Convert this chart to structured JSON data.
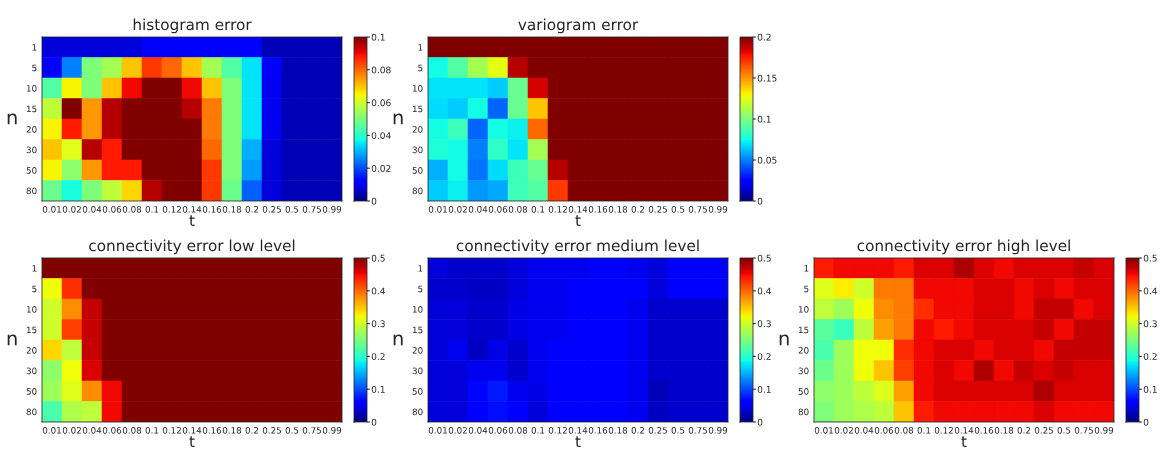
{
  "chart_data": [
    {
      "type": "heatmap",
      "title": "histogram error",
      "xlabel": "t",
      "ylabel": "n",
      "categories": [
        "0.01",
        "0.02",
        "0.04",
        "0.06",
        "0.08",
        "0.1",
        "0.12",
        "0.14",
        "0.16",
        "0.18",
        "0.2",
        "0.25",
        "0.5",
        "0.75",
        "0.99"
      ],
      "y_categories": [
        "1",
        "5",
        "10",
        "15",
        "20",
        "30",
        "50",
        "80"
      ],
      "cells": [
        [
          0.008,
          0.008,
          0.008,
          0.008,
          0.008,
          0.012,
          0.012,
          0.012,
          0.012,
          0.012,
          0.012,
          0.005,
          0.005,
          0.005,
          0.005
        ],
        [
          0.012,
          0.025,
          0.05,
          0.055,
          0.07,
          0.085,
          0.08,
          0.07,
          0.055,
          0.045,
          0.035,
          0.012,
          0.005,
          0.005,
          0.005
        ],
        [
          0.045,
          0.065,
          0.05,
          0.07,
          0.09,
          0.1,
          0.1,
          0.09,
          0.07,
          0.05,
          0.035,
          0.01,
          0.005,
          0.005,
          0.005
        ],
        [
          0.058,
          0.1,
          0.075,
          0.095,
          0.1,
          0.1,
          0.1,
          0.095,
          0.078,
          0.05,
          0.035,
          0.01,
          0.005,
          0.005,
          0.005
        ],
        [
          0.065,
          0.088,
          0.075,
          0.095,
          0.1,
          0.1,
          0.1,
          0.1,
          0.078,
          0.05,
          0.035,
          0.01,
          0.005,
          0.005,
          0.005
        ],
        [
          0.07,
          0.062,
          0.095,
          0.088,
          0.1,
          0.1,
          0.1,
          0.1,
          0.08,
          0.05,
          0.03,
          0.008,
          0.005,
          0.005,
          0.005
        ],
        [
          0.065,
          0.052,
          0.075,
          0.088,
          0.088,
          0.1,
          0.1,
          0.1,
          0.085,
          0.05,
          0.028,
          0.008,
          0.005,
          0.005,
          0.005
        ],
        [
          0.048,
          0.038,
          0.05,
          0.058,
          0.068,
          0.095,
          0.1,
          0.1,
          0.085,
          0.048,
          0.022,
          0.008,
          0.005,
          0.005,
          0.005
        ]
      ],
      "clim": [
        0,
        0.1
      ],
      "cticks": [
        0,
        0.02,
        0.04,
        0.06,
        0.08,
        0.1
      ]
    },
    {
      "type": "heatmap",
      "title": "variogram error",
      "xlabel": "t",
      "ylabel": "n",
      "categories": [
        "0.01",
        "0.02",
        "0.04",
        "0.06",
        "0.08",
        "0.1",
        "0.12",
        "0.14",
        "0.16",
        "0.18",
        "0.2",
        "0.25",
        "0.5",
        "0.75",
        "0.99"
      ],
      "y_categories": [
        "1",
        "5",
        "10",
        "15",
        "20",
        "30",
        "50",
        "80"
      ],
      "cells": [
        [
          0.2,
          0.2,
          0.2,
          0.2,
          0.2,
          0.2,
          0.2,
          0.2,
          0.2,
          0.2,
          0.2,
          0.2,
          0.2,
          0.2,
          0.2
        ],
        [
          0.075,
          0.09,
          0.11,
          0.125,
          0.19,
          0.2,
          0.2,
          0.2,
          0.2,
          0.2,
          0.2,
          0.2,
          0.2,
          0.2,
          0.2
        ],
        [
          0.07,
          0.07,
          0.07,
          0.065,
          0.095,
          0.185,
          0.2,
          0.2,
          0.2,
          0.2,
          0.2,
          0.2,
          0.2,
          0.2,
          0.2
        ],
        [
          0.068,
          0.065,
          0.075,
          0.045,
          0.095,
          0.14,
          0.2,
          0.2,
          0.2,
          0.2,
          0.2,
          0.2,
          0.2,
          0.2,
          0.2
        ],
        [
          0.075,
          0.085,
          0.045,
          0.075,
          0.072,
          0.16,
          0.2,
          0.2,
          0.2,
          0.2,
          0.2,
          0.2,
          0.2,
          0.2,
          0.2
        ],
        [
          0.078,
          0.075,
          0.05,
          0.082,
          0.07,
          0.11,
          0.2,
          0.2,
          0.2,
          0.2,
          0.2,
          0.2,
          0.2,
          0.2,
          0.2
        ],
        [
          0.06,
          0.075,
          0.048,
          0.068,
          0.085,
          0.095,
          0.19,
          0.2,
          0.2,
          0.2,
          0.2,
          0.2,
          0.2,
          0.2,
          0.2
        ],
        [
          0.065,
          0.072,
          0.055,
          0.058,
          0.085,
          0.09,
          0.17,
          0.2,
          0.2,
          0.2,
          0.2,
          0.2,
          0.2,
          0.2,
          0.2
        ]
      ],
      "clim": [
        0,
        0.2
      ],
      "cticks": [
        0,
        0.05,
        0.1,
        0.15,
        0.2
      ]
    },
    {
      "type": "heatmap",
      "title": "connectivity error low level",
      "xlabel": "t",
      "ylabel": "n",
      "categories": [
        "0.01",
        "0.02",
        "0.04",
        "0.06",
        "0.08",
        "0.1",
        "0.12",
        "0.14",
        "0.16",
        "0.18",
        "0.2",
        "0.25",
        "0.5",
        "0.75",
        "0.99"
      ],
      "y_categories": [
        "1",
        "5",
        "10",
        "15",
        "20",
        "30",
        "50",
        "80"
      ],
      "cells": [
        [
          0.5,
          0.5,
          0.5,
          0.5,
          0.5,
          0.5,
          0.5,
          0.5,
          0.5,
          0.5,
          0.5,
          0.5,
          0.5,
          0.5,
          0.5
        ],
        [
          0.32,
          0.43,
          0.5,
          0.5,
          0.5,
          0.5,
          0.5,
          0.5,
          0.5,
          0.5,
          0.5,
          0.5,
          0.5,
          0.5,
          0.5
        ],
        [
          0.3,
          0.38,
          0.47,
          0.5,
          0.5,
          0.5,
          0.5,
          0.5,
          0.5,
          0.5,
          0.5,
          0.5,
          0.5,
          0.5,
          0.5
        ],
        [
          0.3,
          0.42,
          0.47,
          0.5,
          0.5,
          0.5,
          0.5,
          0.5,
          0.5,
          0.5,
          0.5,
          0.5,
          0.5,
          0.5,
          0.5
        ],
        [
          0.34,
          0.29,
          0.47,
          0.5,
          0.5,
          0.5,
          0.5,
          0.5,
          0.5,
          0.5,
          0.5,
          0.5,
          0.5,
          0.5,
          0.5
        ],
        [
          0.26,
          0.32,
          0.46,
          0.5,
          0.5,
          0.5,
          0.5,
          0.5,
          0.5,
          0.5,
          0.5,
          0.5,
          0.5,
          0.5,
          0.5
        ],
        [
          0.27,
          0.31,
          0.38,
          0.45,
          0.5,
          0.5,
          0.5,
          0.5,
          0.5,
          0.5,
          0.5,
          0.5,
          0.5,
          0.5,
          0.5
        ],
        [
          0.22,
          0.28,
          0.29,
          0.45,
          0.5,
          0.5,
          0.5,
          0.5,
          0.5,
          0.5,
          0.5,
          0.5,
          0.5,
          0.5,
          0.5
        ]
      ],
      "clim": [
        0,
        0.5
      ],
      "cticks": [
        0,
        0.1,
        0.2,
        0.3,
        0.4,
        0.5
      ]
    },
    {
      "type": "heatmap",
      "title": "connectivity error medium level",
      "xlabel": "t",
      "ylabel": "n",
      "categories": [
        "0.01",
        "0.02",
        "0.04",
        "0.06",
        "0.08",
        "0.1",
        "0.12",
        "0.14",
        "0.16",
        "0.18",
        "0.2",
        "0.25",
        "0.5",
        "0.75",
        "0.99"
      ],
      "y_categories": [
        "1",
        "5",
        "10",
        "15",
        "20",
        "30",
        "50",
        "80"
      ],
      "cells": [
        [
          0.04,
          0.035,
          0.035,
          0.035,
          0.04,
          0.05,
          0.05,
          0.05,
          0.055,
          0.055,
          0.05,
          0.04,
          0.06,
          0.06,
          0.06
        ],
        [
          0.035,
          0.035,
          0.03,
          0.03,
          0.04,
          0.05,
          0.05,
          0.055,
          0.06,
          0.06,
          0.055,
          0.04,
          0.055,
          0.055,
          0.055
        ],
        [
          0.04,
          0.04,
          0.035,
          0.035,
          0.045,
          0.05,
          0.05,
          0.06,
          0.06,
          0.055,
          0.05,
          0.035,
          0.035,
          0.035,
          0.035
        ],
        [
          0.04,
          0.04,
          0.035,
          0.035,
          0.045,
          0.05,
          0.05,
          0.06,
          0.06,
          0.055,
          0.05,
          0.035,
          0.035,
          0.035,
          0.035
        ],
        [
          0.04,
          0.05,
          0.03,
          0.045,
          0.035,
          0.05,
          0.055,
          0.055,
          0.055,
          0.055,
          0.05,
          0.035,
          0.035,
          0.035,
          0.035
        ],
        [
          0.04,
          0.04,
          0.05,
          0.05,
          0.035,
          0.05,
          0.055,
          0.055,
          0.055,
          0.055,
          0.05,
          0.035,
          0.035,
          0.035,
          0.035
        ],
        [
          0.04,
          0.04,
          0.065,
          0.075,
          0.05,
          0.045,
          0.055,
          0.055,
          0.055,
          0.055,
          0.05,
          0.025,
          0.035,
          0.035,
          0.035
        ],
        [
          0.04,
          0.04,
          0.06,
          0.07,
          0.06,
          0.04,
          0.055,
          0.055,
          0.055,
          0.055,
          0.05,
          0.03,
          0.035,
          0.035,
          0.035
        ]
      ],
      "clim": [
        0,
        0.5
      ],
      "cticks": [
        0,
        0.1,
        0.2,
        0.3,
        0.4,
        0.5
      ]
    },
    {
      "type": "heatmap",
      "title": "connectivity error high level",
      "xlabel": "t",
      "ylabel": "n",
      "categories": [
        "0.01",
        "0.02",
        "0.04",
        "0.06",
        "0.08",
        "0.1",
        "0.12",
        "0.14",
        "0.16",
        "0.18",
        "0.2",
        "0.25",
        "0.5",
        "0.75",
        "0.99"
      ],
      "y_categories": [
        "1",
        "5",
        "10",
        "15",
        "20",
        "30",
        "50",
        "80"
      ],
      "cells": [
        [
          0.44,
          0.45,
          0.45,
          0.45,
          0.44,
          0.46,
          0.46,
          0.48,
          0.46,
          0.45,
          0.46,
          0.46,
          0.46,
          0.47,
          0.46
        ],
        [
          0.31,
          0.33,
          0.3,
          0.39,
          0.39,
          0.45,
          0.45,
          0.45,
          0.46,
          0.46,
          0.45,
          0.46,
          0.45,
          0.46,
          0.46
        ],
        [
          0.29,
          0.27,
          0.32,
          0.38,
          0.39,
          0.43,
          0.45,
          0.45,
          0.46,
          0.46,
          0.45,
          0.47,
          0.47,
          0.45,
          0.46
        ],
        [
          0.23,
          0.21,
          0.29,
          0.37,
          0.39,
          0.45,
          0.44,
          0.45,
          0.46,
          0.46,
          0.46,
          0.47,
          0.45,
          0.47,
          0.47
        ],
        [
          0.22,
          0.27,
          0.32,
          0.32,
          0.43,
          0.45,
          0.46,
          0.46,
          0.45,
          0.46,
          0.46,
          0.45,
          0.47,
          0.47,
          0.47
        ],
        [
          0.24,
          0.27,
          0.32,
          0.35,
          0.42,
          0.45,
          0.46,
          0.45,
          0.48,
          0.45,
          0.47,
          0.46,
          0.47,
          0.46,
          0.46
        ],
        [
          0.26,
          0.27,
          0.29,
          0.31,
          0.37,
          0.45,
          0.46,
          0.46,
          0.46,
          0.46,
          0.46,
          0.48,
          0.46,
          0.46,
          0.46
        ],
        [
          0.25,
          0.27,
          0.28,
          0.29,
          0.35,
          0.44,
          0.45,
          0.45,
          0.45,
          0.45,
          0.45,
          0.46,
          0.45,
          0.45,
          0.45
        ]
      ],
      "clim": [
        0,
        0.5
      ],
      "cticks": [
        0,
        0.1,
        0.2,
        0.3,
        0.4,
        0.5
      ]
    }
  ]
}
